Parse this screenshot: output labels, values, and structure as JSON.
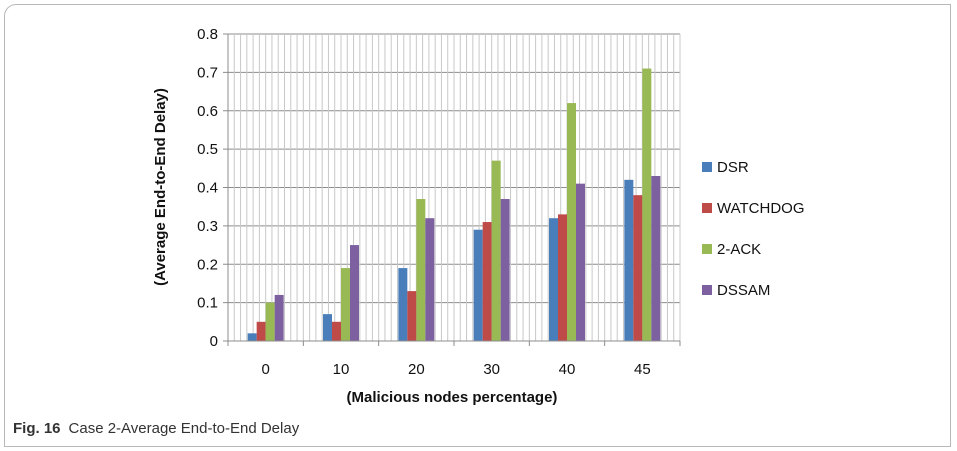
{
  "caption": {
    "label": "Fig. 16",
    "text": "Case 2-Average End-to-End Delay"
  },
  "chart_data": {
    "type": "bar",
    "title": "",
    "xlabel": "(Malicious nodes percentage)",
    "ylabel": "(Average End-to-End Delay)",
    "categories": [
      "0",
      "10",
      "20",
      "30",
      "40",
      "45"
    ],
    "ylim": [
      0,
      0.8
    ],
    "yticks": [
      "0",
      "0.1",
      "0.2",
      "0.3",
      "0.4",
      "0.5",
      "0.6",
      "0.7",
      "0.8"
    ],
    "grid": "vertical and horizontal",
    "legend_position": "right",
    "series": [
      {
        "name": "DSR",
        "color": "#4a7ebb",
        "values": [
          0.02,
          0.07,
          0.19,
          0.29,
          0.32,
          0.42
        ]
      },
      {
        "name": "WATCHDOG",
        "color": "#be4b48",
        "values": [
          0.05,
          0.05,
          0.13,
          0.31,
          0.33,
          0.38
        ]
      },
      {
        "name": "2-ACK",
        "color": "#98b954",
        "values": [
          0.1,
          0.19,
          0.37,
          0.47,
          0.62,
          0.71
        ]
      },
      {
        "name": "DSSAM",
        "color": "#7d60a0",
        "values": [
          0.12,
          0.25,
          0.32,
          0.37,
          0.41,
          0.43
        ]
      }
    ]
  }
}
